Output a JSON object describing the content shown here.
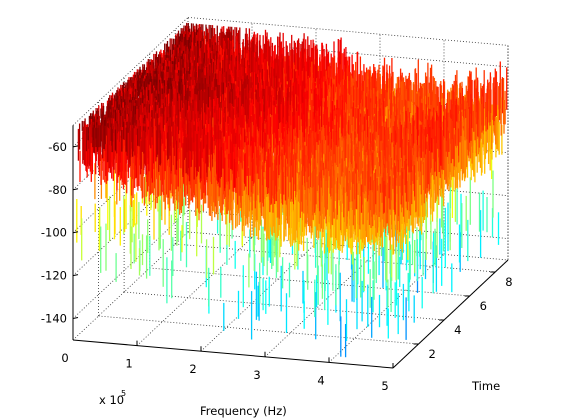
{
  "chart_data": {
    "type": "surface",
    "colormap": "jet",
    "xlabel": "Frequency (Hz)",
    "ylabel": "Time",
    "x_exponent_label": "x 10",
    "x_exponent_power": "5",
    "xlim": [
      0,
      5
    ],
    "ylim": [
      0,
      9
    ],
    "zlim": [
      -150,
      -50
    ],
    "x_ticks": [
      "0",
      "1",
      "2",
      "3",
      "4",
      "5"
    ],
    "y_ticks": [
      "2",
      "4",
      "6",
      "8"
    ],
    "z_ticks": [
      "-60",
      "-80",
      "-100",
      "-120",
      "-140"
    ],
    "grid": true,
    "x_range_hz": [
      0,
      500000
    ],
    "time_range": [
      0.3,
      8.9
    ],
    "level_profile_db": [
      {
        "freq_x1e5": 0.0,
        "level": -62
      },
      {
        "freq_x1e5": 0.5,
        "level": -66
      },
      {
        "freq_x1e5": 1.0,
        "level": -71
      },
      {
        "freq_x1e5": 1.5,
        "level": -74
      },
      {
        "freq_x1e5": 2.0,
        "level": -76
      },
      {
        "freq_x1e5": 2.5,
        "level": -80
      },
      {
        "freq_x1e5": 3.0,
        "level": -84
      },
      {
        "freq_x1e5": 3.5,
        "level": -86
      },
      {
        "freq_x1e5": 4.0,
        "level": -88
      },
      {
        "freq_x1e5": 4.5,
        "level": -86
      },
      {
        "freq_x1e5": 5.0,
        "level": -85
      }
    ]
  }
}
